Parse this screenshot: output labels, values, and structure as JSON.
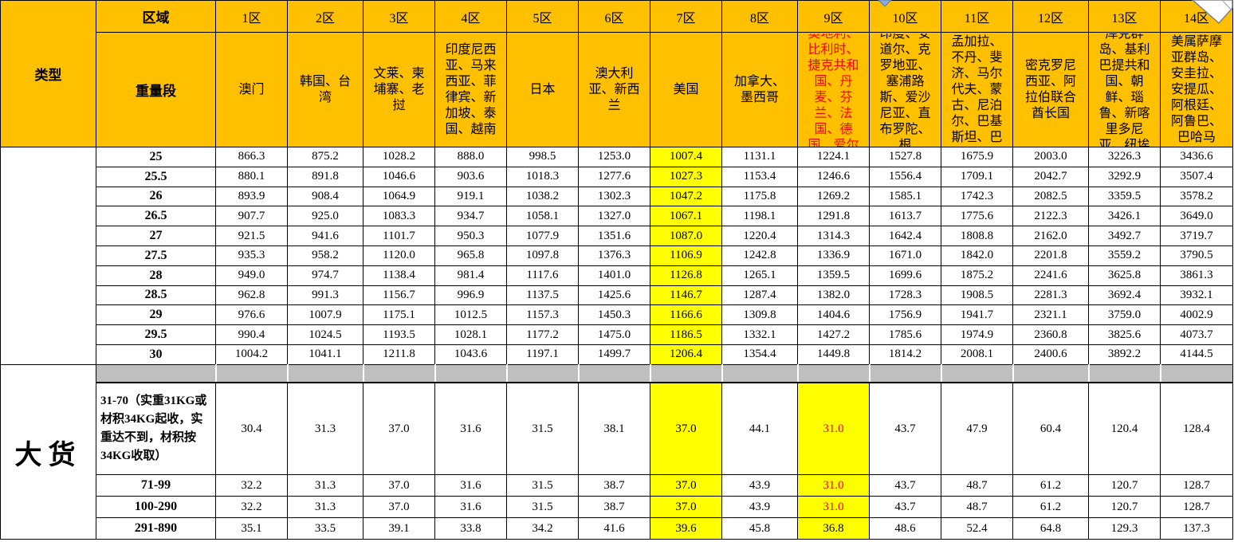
{
  "colors": {
    "header_bg": "#FFC000",
    "highlight": "#FFFF00",
    "separator_gray": "#BFBFBF",
    "alert_red": "#FF0000",
    "grid": "#000000"
  },
  "icons": {
    "corner": "folded-corner-icon",
    "marker": "triangle-marker-icon"
  },
  "header": {
    "type_label": "类型",
    "region_label": "区域",
    "weight_label": "重量段",
    "big_cargo_label": "大货"
  },
  "zones": [
    {
      "id": "1区",
      "countries": "澳门",
      "red": false
    },
    {
      "id": "2区",
      "countries": "韩国、台湾",
      "red": false
    },
    {
      "id": "3区",
      "countries": "文莱、柬埔寨、老挝",
      "red": false
    },
    {
      "id": "4区",
      "countries": "印度尼西亚、马来西亚、菲律宾、新加坡、泰国、越南",
      "red": false
    },
    {
      "id": "5区",
      "countries": "日本",
      "red": false
    },
    {
      "id": "6区",
      "countries": "澳大利亚、新西兰",
      "red": false
    },
    {
      "id": "7区",
      "countries": "美国",
      "red": false
    },
    {
      "id": "8区",
      "countries": "加拿大、墨西哥",
      "red": false
    },
    {
      "id": "9区",
      "countries": "奥地利、比利时、捷克共和国、丹麦、芬兰、法国、德国、爱尔",
      "red": true
    },
    {
      "id": "10区",
      "countries": "印度、安道尔、克罗地亚、塞浦路斯、爱沙尼亚、直布罗陀、根",
      "red": false
    },
    {
      "id": "11区",
      "countries": "孟加拉、不丹、斐济、马尔代夫、蒙古、尼泊尔、巴基斯坦、巴",
      "red": false
    },
    {
      "id": "12区",
      "countries": "密克罗尼西亚、阿拉伯联合酋长国",
      "red": false
    },
    {
      "id": "13区",
      "countries": "库克群岛、基利巴提共和国、朝鲜、瑙鲁、新喀里多尼亚、纽埃",
      "red": false
    },
    {
      "id": "14区",
      "countries": "美属萨摩亚群岛、安圭拉、安提瓜、阿根廷、阿鲁巴、巴哈马",
      "red": false
    }
  ],
  "style": {
    "upper_yellow_col": 6,
    "lower_yellow_cols": [
      6,
      8
    ]
  },
  "upper_rows": [
    {
      "weight": "25",
      "values": [
        "866.3",
        "875.2",
        "1028.2",
        "888.0",
        "998.5",
        "1253.0",
        "1007.4",
        "1131.1",
        "1224.1",
        "1527.8",
        "1675.9",
        "2003.0",
        "3226.3",
        "3436.6"
      ]
    },
    {
      "weight": "25.5",
      "values": [
        "880.1",
        "891.8",
        "1046.6",
        "903.6",
        "1018.3",
        "1277.6",
        "1027.3",
        "1153.4",
        "1246.6",
        "1556.4",
        "1709.1",
        "2042.7",
        "3292.9",
        "3507.4"
      ]
    },
    {
      "weight": "26",
      "values": [
        "893.9",
        "908.4",
        "1064.9",
        "919.1",
        "1038.2",
        "1302.3",
        "1047.2",
        "1175.8",
        "1269.2",
        "1585.1",
        "1742.3",
        "2082.5",
        "3359.5",
        "3578.2"
      ]
    },
    {
      "weight": "26.5",
      "values": [
        "907.7",
        "925.0",
        "1083.3",
        "934.7",
        "1058.1",
        "1327.0",
        "1067.1",
        "1198.1",
        "1291.8",
        "1613.7",
        "1775.6",
        "2122.3",
        "3426.1",
        "3649.0"
      ]
    },
    {
      "weight": "27",
      "values": [
        "921.5",
        "941.6",
        "1101.7",
        "950.3",
        "1077.9",
        "1351.6",
        "1087.0",
        "1220.4",
        "1314.3",
        "1642.4",
        "1808.8",
        "2162.0",
        "3492.7",
        "3719.7"
      ]
    },
    {
      "weight": "27.5",
      "values": [
        "935.3",
        "958.2",
        "1120.0",
        "965.8",
        "1097.8",
        "1376.3",
        "1106.9",
        "1242.8",
        "1336.9",
        "1671.0",
        "1842.0",
        "2201.8",
        "3559.2",
        "3790.5"
      ]
    },
    {
      "weight": "28",
      "values": [
        "949.0",
        "974.7",
        "1138.4",
        "981.4",
        "1117.6",
        "1401.0",
        "1126.8",
        "1265.1",
        "1359.5",
        "1699.6",
        "1875.2",
        "2241.6",
        "3625.8",
        "3861.3"
      ]
    },
    {
      "weight": "28.5",
      "values": [
        "962.8",
        "991.3",
        "1156.7",
        "996.9",
        "1137.5",
        "1425.6",
        "1146.7",
        "1287.4",
        "1382.0",
        "1728.3",
        "1908.5",
        "2281.3",
        "3692.4",
        "3932.1"
      ]
    },
    {
      "weight": "29",
      "values": [
        "976.6",
        "1007.9",
        "1175.1",
        "1012.5",
        "1157.3",
        "1450.3",
        "1166.6",
        "1309.8",
        "1404.6",
        "1756.9",
        "1941.7",
        "2321.1",
        "3759.0",
        "4002.9"
      ]
    },
    {
      "weight": "29.5",
      "values": [
        "990.4",
        "1024.5",
        "1193.5",
        "1028.1",
        "1177.2",
        "1475.0",
        "1186.5",
        "1332.1",
        "1427.2",
        "1785.6",
        "1974.9",
        "2360.8",
        "3825.6",
        "4073.7"
      ]
    },
    {
      "weight": "30",
      "values": [
        "1004.2",
        "1041.1",
        "1211.8",
        "1043.6",
        "1197.1",
        "1499.7",
        "1206.4",
        "1354.4",
        "1449.8",
        "1814.2",
        "2008.1",
        "2400.6",
        "3892.2",
        "4144.5"
      ]
    }
  ],
  "lower_rows": [
    {
      "weight": "31-70（实重31KG或材积34KG起收，实重达不到，材积按34KG收取）",
      "align": "left",
      "red_cols": [
        8
      ],
      "values": [
        "30.4",
        "31.3",
        "37.0",
        "31.6",
        "31.5",
        "38.1",
        "37.0",
        "44.1",
        "31.0",
        "43.7",
        "47.9",
        "60.4",
        "120.4",
        "128.4"
      ]
    },
    {
      "weight": "71-99",
      "align": "center",
      "red_cols": [
        8
      ],
      "values": [
        "32.2",
        "31.3",
        "37.0",
        "31.6",
        "31.5",
        "38.7",
        "37.0",
        "43.9",
        "31.0",
        "43.7",
        "48.7",
        "61.2",
        "120.7",
        "128.7"
      ]
    },
    {
      "weight": "100-290",
      "align": "center",
      "red_cols": [
        8
      ],
      "values": [
        "32.2",
        "31.3",
        "37.0",
        "31.6",
        "31.5",
        "38.7",
        "37.0",
        "43.9",
        "31.0",
        "43.7",
        "48.7",
        "61.2",
        "120.7",
        "128.7"
      ]
    },
    {
      "weight": "291-890",
      "align": "center",
      "red_cols": [],
      "values": [
        "35.1",
        "33.5",
        "39.1",
        "33.8",
        "34.2",
        "41.6",
        "39.6",
        "45.8",
        "36.8",
        "48.6",
        "52.4",
        "64.8",
        "129.3",
        "137.3"
      ]
    }
  ]
}
